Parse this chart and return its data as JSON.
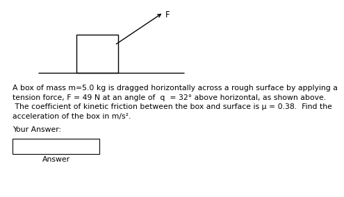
{
  "bg_color": "#ffffff",
  "line1": "A box of mass m=5.0 kg is dragged horizontally across a rough surface by applying a",
  "line2": "tension force, F = 49 N at an angle of  q  = 32° above horizontal, as shown above.",
  "line3": " The coefficient of kinetic friction between the box and surface is μ = 0.38.  Find the",
  "line4": "acceleration of the box in m/s².",
  "your_answer_label": "Your Answer:",
  "answer_label": "Answer",
  "font_size_main": 7.8
}
